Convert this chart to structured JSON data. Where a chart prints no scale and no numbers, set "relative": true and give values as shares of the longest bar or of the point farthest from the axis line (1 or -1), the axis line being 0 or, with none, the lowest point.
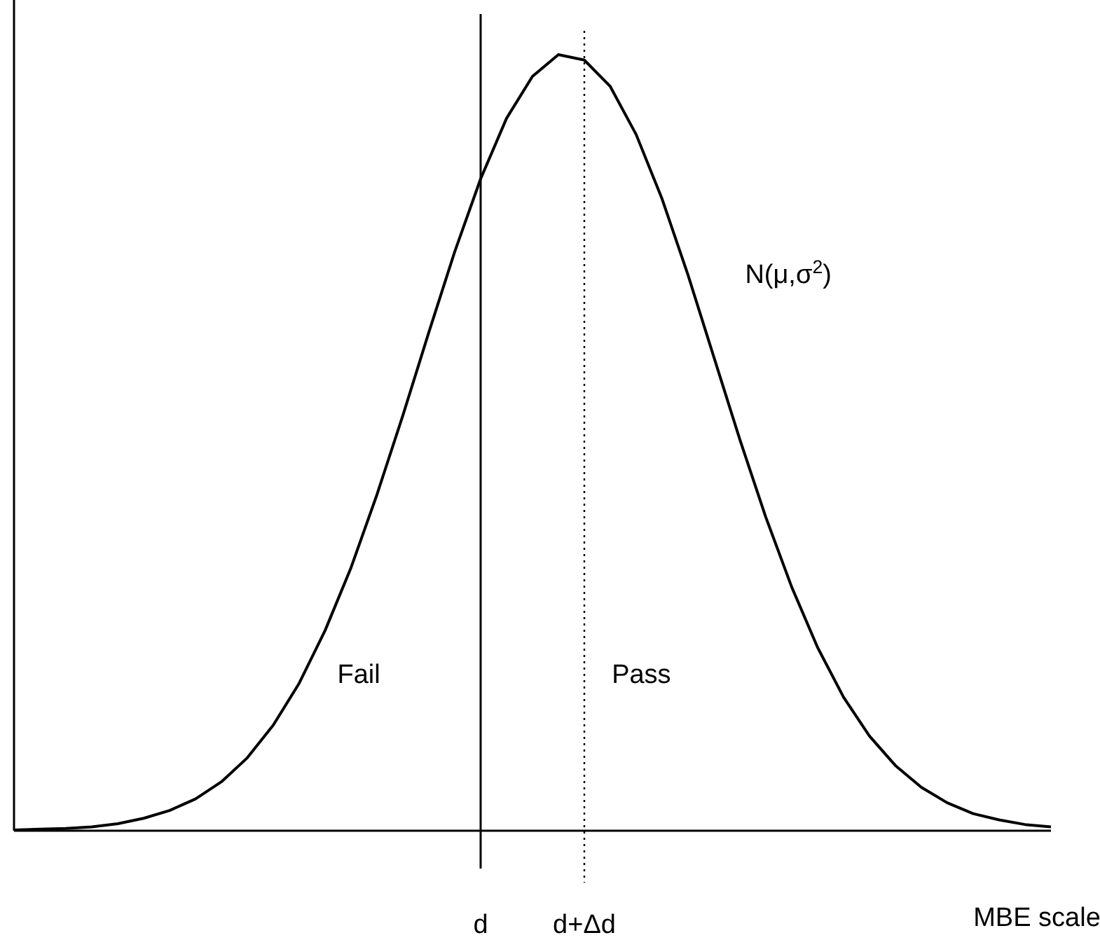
{
  "chart_data": {
    "type": "line",
    "relative": true,
    "xlabel": "MBE scale",
    "categories": [
      null,
      null,
      null,
      null,
      null,
      null,
      null,
      null,
      null,
      null,
      null,
      null,
      null,
      null,
      null,
      null,
      null,
      null,
      "d",
      null,
      null,
      null,
      "d+Δd",
      null,
      null,
      null,
      null,
      null,
      null,
      null,
      null,
      null,
      null,
      null,
      null,
      null,
      null,
      null,
      null,
      null,
      null
    ],
    "series": [
      {
        "name": "N(μ,σ$^{2}$)",
        "color": "#000000",
        "values": [
          0.001,
          0.002,
          0.003,
          0.005,
          0.009,
          0.016,
          0.026,
          0.041,
          0.063,
          0.094,
          0.136,
          0.19,
          0.258,
          0.339,
          0.433,
          0.535,
          0.642,
          0.746,
          0.84,
          0.918,
          0.972,
          1,
          0.993,
          0.959,
          0.897,
          0.814,
          0.716,
          0.61,
          0.504,
          0.404,
          0.314,
          0.236,
          0.172,
          0.122,
          0.084,
          0.056,
          0.036,
          0.022,
          0.014,
          0.008,
          0.005
        ]
      }
    ],
    "ref_lines": [
      {
        "axis": "x",
        "value": "d",
        "color": "#000000",
        "line_style": "solid"
      },
      {
        "axis": "x",
        "value": "d+Δd",
        "color": "#000000",
        "line_style": "dotted"
      }
    ],
    "annotations": [
      "Fail",
      "Pass"
    ]
  }
}
